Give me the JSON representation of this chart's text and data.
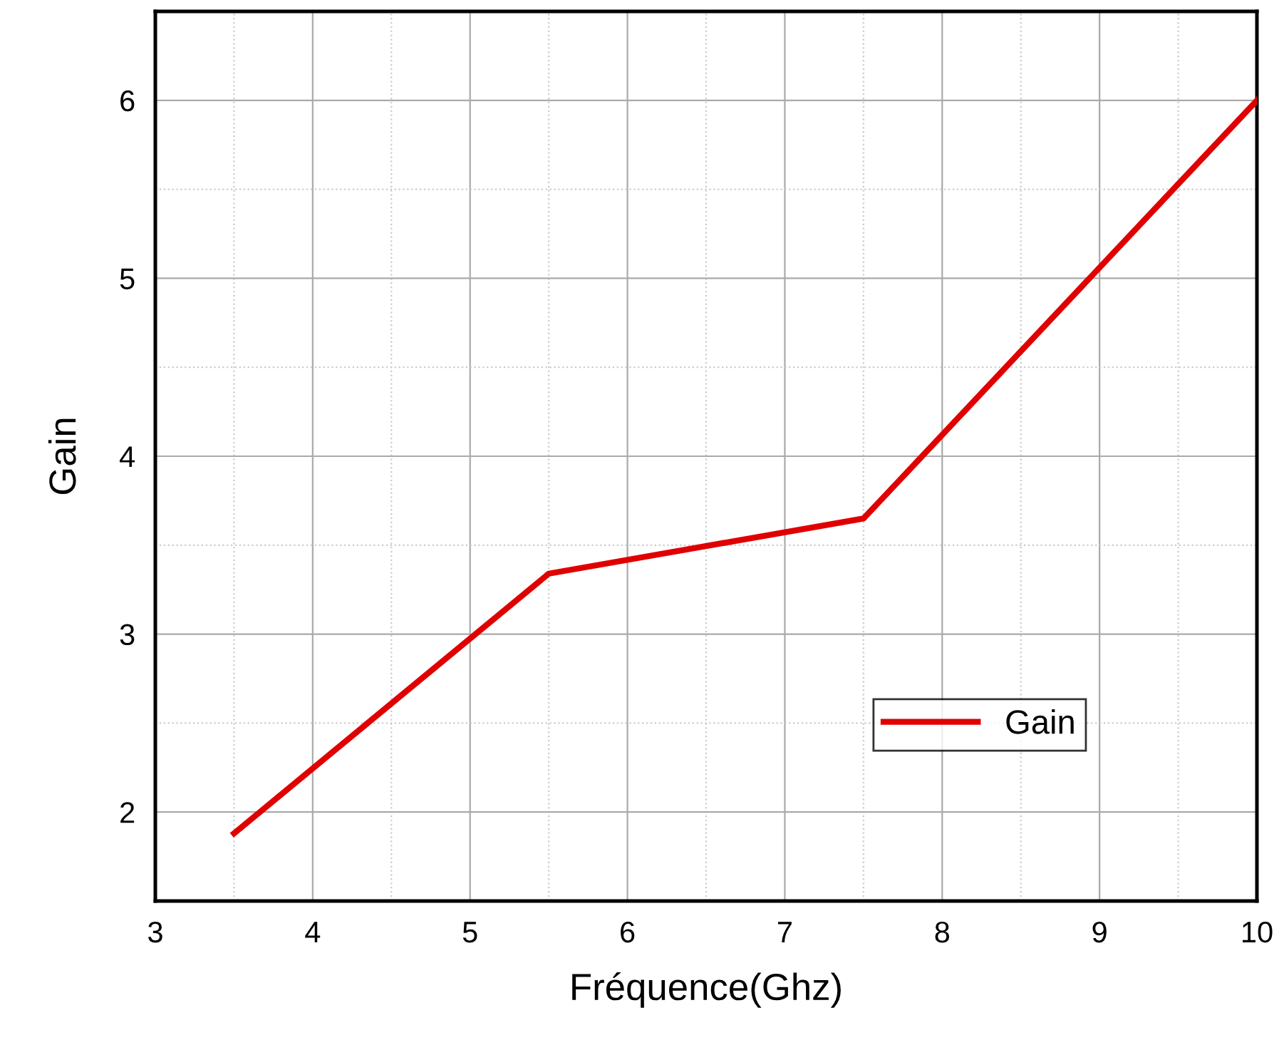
{
  "chart_data": {
    "type": "line",
    "xlabel": "Fréquence(Ghz)",
    "ylabel": "Gain",
    "x": [
      3.5,
      5.5,
      7.5,
      10
    ],
    "series": [
      {
        "name": "Gain",
        "color": "#e00000",
        "values": [
          1.88,
          3.34,
          3.65,
          6.0
        ]
      }
    ],
    "xlim": [
      3,
      10
    ],
    "xticks": [
      3,
      4,
      5,
      6,
      7,
      8,
      9,
      10
    ],
    "ylim": [
      1.5,
      6.5
    ],
    "yticks": [
      2,
      3,
      4,
      5,
      6
    ],
    "grid": true,
    "legend": "bottom right",
    "marker": "none",
    "line_style": "solid"
  }
}
